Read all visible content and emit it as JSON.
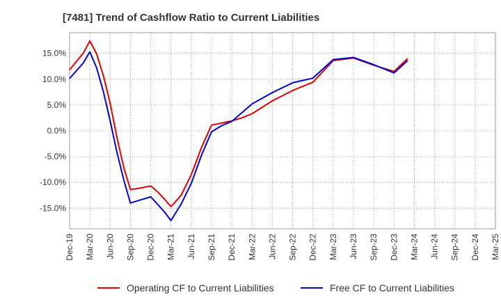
{
  "chart_data": {
    "type": "line",
    "title": "[7481]  Trend of Cashflow Ratio to Current Liabilities",
    "xlabel": "",
    "ylabel": "",
    "categories": [
      "Dec-19",
      "Mar-20",
      "Jun-20",
      "Sep-20",
      "Dec-20",
      "Mar-21",
      "Jun-21",
      "Sep-21",
      "Dec-21",
      "Mar-22",
      "Jun-22",
      "Sep-22",
      "Dec-22",
      "Mar-23",
      "Jun-23",
      "Sep-23",
      "Dec-23",
      "Mar-24",
      "Jun-24",
      "Sep-24",
      "Dec-24",
      "Mar-25"
    ],
    "ylim": [
      -19,
      19
    ],
    "yticks": [
      -15,
      -10,
      -5,
      0,
      5,
      10,
      15
    ],
    "ytick_labels": [
      "-15.0%",
      "-10.0%",
      "-5.0%",
      "0.0%",
      "5.0%",
      "10.0%",
      "15.0%"
    ],
    "grid": true,
    "legend_position": "bottom",
    "series": [
      {
        "name": "Operating CF to Current Liabilities",
        "color": "#dd0000",
        "x": [
          0,
          0.33,
          0.67,
          1,
          1.33,
          1.67,
          2,
          2.33,
          2.67,
          3,
          3.5,
          4,
          4.33,
          4.67,
          5,
          5.5,
          6,
          6.5,
          7,
          7.5,
          8,
          8.5,
          9,
          10,
          11,
          12,
          13,
          14,
          15,
          16,
          16.67
        ],
        "values": [
          11.8,
          13.4,
          15.0,
          17.4,
          14.9,
          10.6,
          5.3,
          -1.2,
          -7.1,
          -11.4,
          -11.1,
          -10.7,
          -11.8,
          -13.2,
          -14.7,
          -12.5,
          -8.5,
          -3.3,
          1.1,
          1.5,
          1.9,
          2.5,
          3.3,
          5.8,
          7.8,
          9.4,
          13.6,
          14.1,
          12.7,
          11.5,
          14.0
        ]
      },
      {
        "name": "Free CF to Current Liabilities",
        "color": "#0000cc",
        "x": [
          0,
          0.33,
          0.67,
          1,
          1.33,
          1.67,
          2,
          2.33,
          2.67,
          3,
          3.5,
          4,
          4.33,
          4.67,
          5,
          5.5,
          6,
          6.5,
          7,
          7.5,
          8,
          8.5,
          9,
          10,
          11,
          12,
          13,
          14,
          15,
          16,
          16.67
        ],
        "values": [
          10.1,
          11.6,
          13.1,
          15.3,
          12.2,
          7.5,
          1.9,
          -4.1,
          -9.5,
          -14.0,
          -13.4,
          -12.8,
          -14.2,
          -15.7,
          -17.4,
          -14.2,
          -10.2,
          -4.8,
          -0.2,
          1.0,
          1.8,
          3.5,
          5.2,
          7.4,
          9.3,
          10.2,
          13.8,
          14.2,
          12.8,
          11.2,
          13.6
        ]
      }
    ]
  }
}
